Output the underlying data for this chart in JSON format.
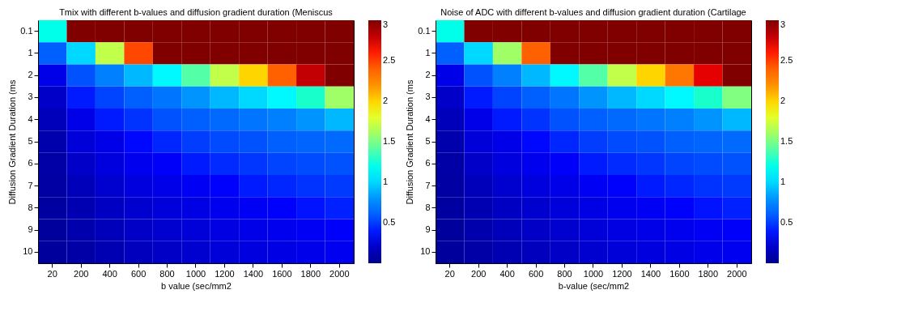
{
  "chart_data": [
    {
      "type": "heatmap",
      "title": "Tmix with different b-values and diffusion gradient duration (Meniscus",
      "xlabel": "b value (sec/mm2",
      "ylabel": "Diffusion Gradient Duration (ms",
      "categories": [
        "20",
        "200",
        "400",
        "600",
        "800",
        "1000",
        "1200",
        "1400",
        "1600",
        "1800",
        "2000"
      ],
      "y_categories": [
        "0.1",
        "1",
        "2",
        "3",
        "4",
        "5",
        "6",
        "7",
        "8",
        "9",
        "10"
      ],
      "cells": [
        [
          1.2,
          3,
          3,
          3,
          3,
          3,
          3,
          3,
          3,
          3,
          3
        ],
        [
          0.6,
          1.0,
          1.7,
          2.5,
          3,
          3,
          3,
          3,
          3,
          3,
          3
        ],
        [
          0.3,
          0.55,
          0.75,
          0.9,
          1.1,
          1.4,
          1.7,
          2.0,
          2.4,
          2.8,
          3
        ],
        [
          0.2,
          0.4,
          0.5,
          0.6,
          0.7,
          0.8,
          0.9,
          1.0,
          1.1,
          1.3,
          1.6
        ],
        [
          0.15,
          0.3,
          0.4,
          0.45,
          0.55,
          0.6,
          0.65,
          0.7,
          0.75,
          0.8,
          0.9
        ],
        [
          0.1,
          0.25,
          0.3,
          0.38,
          0.42,
          0.48,
          0.52,
          0.55,
          0.6,
          0.62,
          0.65
        ],
        [
          0.08,
          0.2,
          0.27,
          0.32,
          0.36,
          0.4,
          0.43,
          0.46,
          0.5,
          0.52,
          0.55
        ],
        [
          0.07,
          0.15,
          0.22,
          0.27,
          0.3,
          0.34,
          0.37,
          0.4,
          0.42,
          0.45,
          0.47
        ],
        [
          0.06,
          0.12,
          0.18,
          0.22,
          0.26,
          0.29,
          0.32,
          0.34,
          0.37,
          0.39,
          0.41
        ],
        [
          0.05,
          0.1,
          0.15,
          0.19,
          0.22,
          0.25,
          0.28,
          0.3,
          0.32,
          0.34,
          0.36
        ],
        [
          0.05,
          0.08,
          0.12,
          0.16,
          0.19,
          0.22,
          0.25,
          0.27,
          0.29,
          0.31,
          0.33
        ]
      ],
      "clim": [
        0,
        3
      ],
      "cticks": [
        0.5,
        1,
        1.5,
        2,
        2.5,
        3
      ]
    },
    {
      "type": "heatmap",
      "title": "Noise of ADC with different b-values and diffusion gradient duration (Cartilage",
      "xlabel": "b-value (sec/mm2",
      "ylabel": "Diffusion Gradient Duration (ms",
      "categories": [
        "20",
        "200",
        "400",
        "600",
        "800",
        "1000",
        "1200",
        "1400",
        "1600",
        "1800",
        "2000"
      ],
      "y_categories": [
        "0.1",
        "1",
        "2",
        "3",
        "4",
        "5",
        "6",
        "7",
        "8",
        "9",
        "10"
      ],
      "cells": [
        [
          1.2,
          3,
          3,
          3,
          3,
          3,
          3,
          3,
          3,
          3,
          3
        ],
        [
          0.6,
          1.0,
          1.6,
          2.4,
          3,
          3,
          3,
          3,
          3,
          3,
          3
        ],
        [
          0.3,
          0.55,
          0.75,
          0.9,
          1.1,
          1.4,
          1.7,
          2.0,
          2.3,
          2.7,
          3
        ],
        [
          0.2,
          0.4,
          0.5,
          0.6,
          0.7,
          0.8,
          0.9,
          1.0,
          1.1,
          1.3,
          1.5
        ],
        [
          0.15,
          0.3,
          0.4,
          0.45,
          0.55,
          0.6,
          0.65,
          0.7,
          0.75,
          0.8,
          0.9
        ],
        [
          0.1,
          0.25,
          0.3,
          0.38,
          0.42,
          0.48,
          0.52,
          0.55,
          0.6,
          0.62,
          0.65
        ],
        [
          0.08,
          0.2,
          0.27,
          0.32,
          0.36,
          0.4,
          0.43,
          0.46,
          0.5,
          0.52,
          0.55
        ],
        [
          0.07,
          0.15,
          0.22,
          0.27,
          0.3,
          0.34,
          0.37,
          0.4,
          0.42,
          0.45,
          0.47
        ],
        [
          0.06,
          0.12,
          0.18,
          0.22,
          0.26,
          0.29,
          0.32,
          0.34,
          0.37,
          0.39,
          0.41
        ],
        [
          0.05,
          0.1,
          0.15,
          0.19,
          0.22,
          0.25,
          0.28,
          0.3,
          0.32,
          0.34,
          0.36
        ],
        [
          0.05,
          0.08,
          0.12,
          0.16,
          0.19,
          0.22,
          0.25,
          0.27,
          0.29,
          0.31,
          0.33
        ]
      ],
      "clim": [
        0,
        3
      ],
      "cticks": [
        0.5,
        1,
        1.5,
        2,
        2.5,
        3
      ]
    }
  ]
}
